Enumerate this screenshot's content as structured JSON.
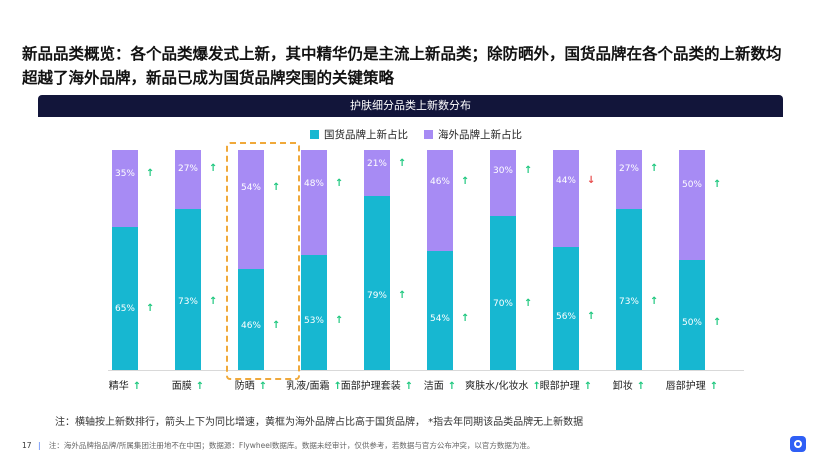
{
  "headline": "新品品类概览：各个品类爆发式上新，其中精华仍是主流上新品类；除防晒外，国货品牌在各个品类的上新数均超越了海外品牌，新品已成为国货品牌突围的关键策略",
  "chart_data": {
    "type": "bar",
    "title": "护肤细分品类上新数分布",
    "stacked": true,
    "percent_stacked": true,
    "categories": [
      "精华",
      "面膜",
      "防晒",
      "乳液/面霜",
      "面部护理套装",
      "洁面",
      "爽肤水/化妆水",
      "眼部护理",
      "卸妆",
      "唇部护理"
    ],
    "series": [
      {
        "name": "国货品牌上新占比",
        "color": "#17b7d1",
        "values": [
          65,
          73,
          46,
          53,
          79,
          54,
          70,
          56,
          73,
          50
        ]
      },
      {
        "name": "海外品牌上新占比",
        "color": "#a78bf4",
        "values": [
          35,
          27,
          54,
          48,
          21,
          46,
          30,
          44,
          27,
          50
        ]
      }
    ],
    "domestic_trend": [
      "up",
      "up",
      "up",
      "up",
      "up",
      "up",
      "up",
      "up",
      "up",
      "up"
    ],
    "overseas_trend": [
      "up",
      "up",
      "up",
      "up",
      "up",
      "up",
      "up",
      "down",
      "up",
      "up"
    ],
    "category_trend": [
      "up",
      "up",
      "up",
      "up",
      "up",
      "up",
      "up",
      "up",
      "up",
      "up"
    ],
    "highlighted_category": "防晒",
    "ylim": [
      0,
      100
    ],
    "legend_position": "top-center"
  },
  "note": "注：横轴按上新数排行，箭头上下为同比增速，黄框为海外品牌占比高于国货品牌，  *指去年同期该品类品牌无上新数据",
  "footer": {
    "page_number": "17",
    "text": "注：海外品牌指品牌/所属集团注册地不在中国；数据源：Flywheel数据库。数据未经审计，仅供参考，若数据与官方公布冲突，以官方数据为准。"
  },
  "colors": {
    "domestic": "#17b7d1",
    "overseas": "#a78bf4",
    "header_bg": "#12153a",
    "arrow_up": "#1fc87f",
    "arrow_down": "#e84c4c",
    "highlight": "#f0a93b"
  }
}
